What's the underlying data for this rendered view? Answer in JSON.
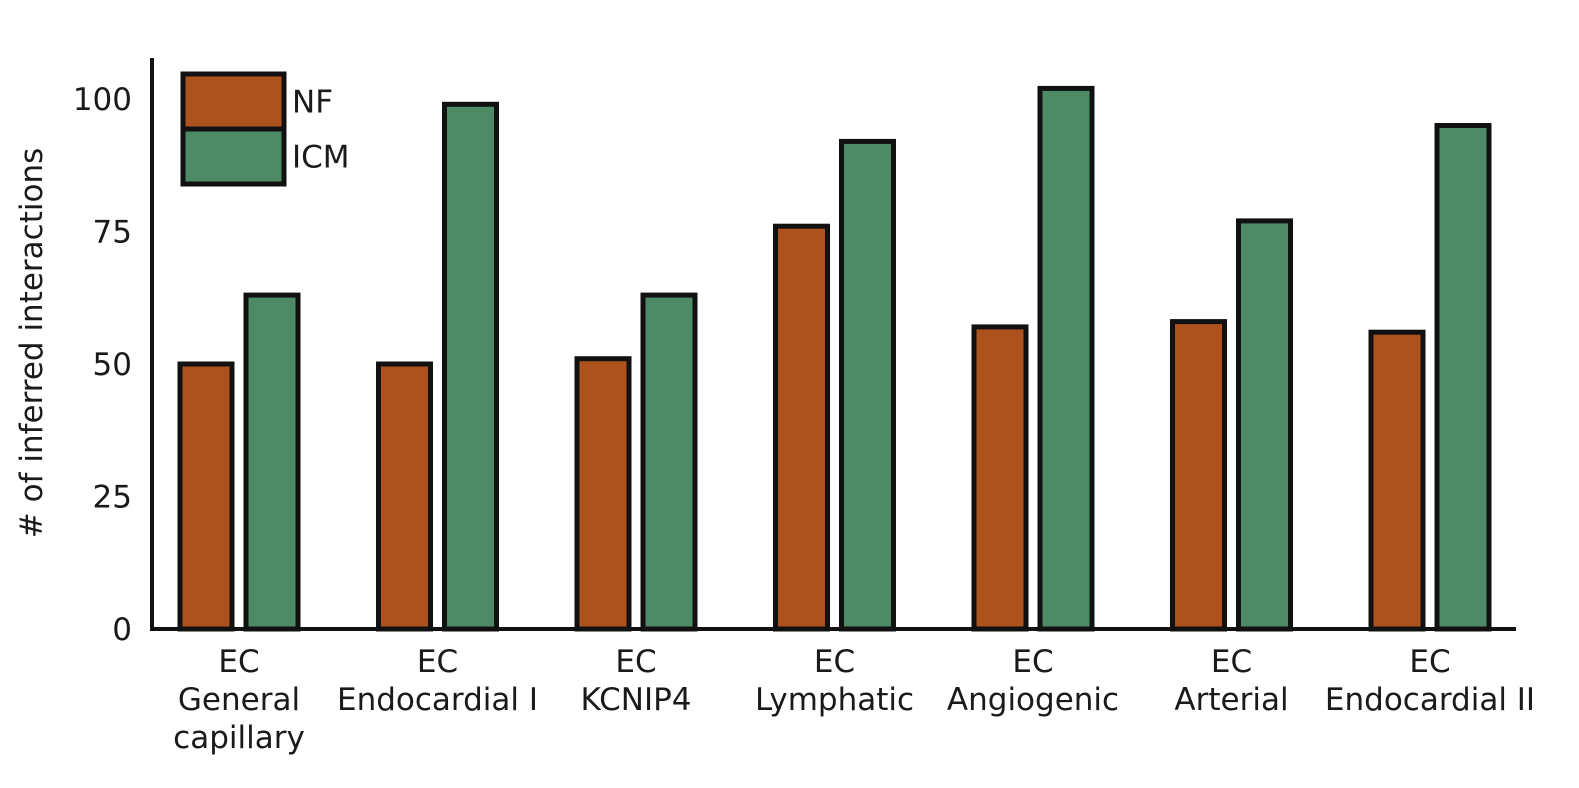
{
  "chart_data": {
    "type": "bar",
    "title": "",
    "xlabel": "",
    "ylabel": "# of inferred interactions",
    "ylim": [
      0,
      108
    ],
    "yticks": [
      0,
      25,
      50,
      75,
      100
    ],
    "grid": false,
    "legend_position": "top-left",
    "categories": [
      [
        "EC",
        "General",
        "capillary"
      ],
      [
        "EC",
        "Endocardial I"
      ],
      [
        "EC",
        "KCNIP4"
      ],
      [
        "EC",
        "Lymphatic"
      ],
      [
        "EC",
        "Angiogenic"
      ],
      [
        "EC",
        "Arterial"
      ],
      [
        "EC",
        "Endocardial II"
      ]
    ],
    "series": [
      {
        "name": "NF",
        "color": "#ad511d",
        "values": [
          50,
          50,
          51,
          76,
          57,
          58,
          56
        ]
      },
      {
        "name": "ICM",
        "color": "#4e8a66",
        "values": [
          63,
          99,
          63,
          92,
          102,
          77,
          95
        ]
      }
    ]
  }
}
